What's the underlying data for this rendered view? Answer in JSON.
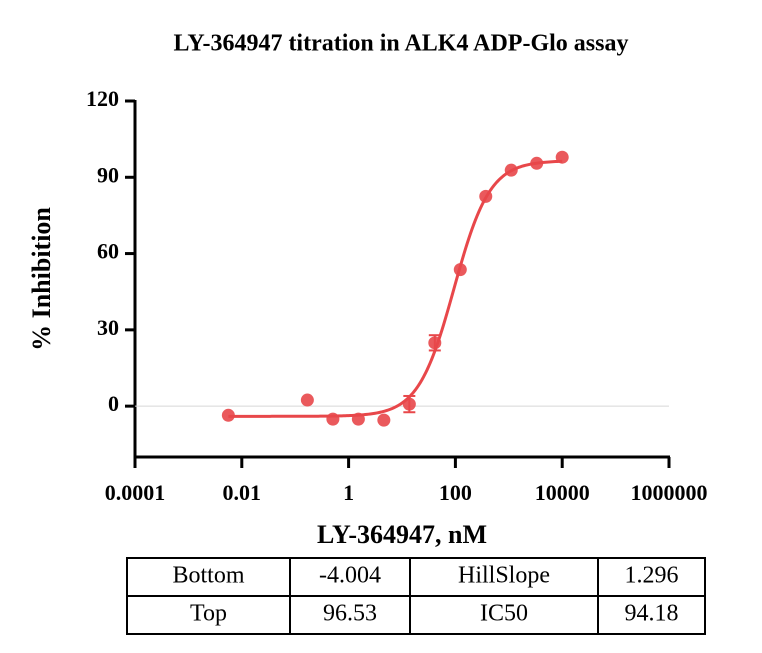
{
  "chart_data": {
    "type": "scatter",
    "title": "LY-364947 titration  in ALK4 ADP-Glo assay",
    "x_label": "LY-364947, nM",
    "y_label": "% Inhibition",
    "log_x": true,
    "zero_line": true,
    "color": "#e8474a",
    "x": [
      0.0056,
      0.169,
      0.508,
      1.524,
      4.572,
      13.72,
      41.15,
      123.5,
      370.4,
      1111,
      3333,
      10000
    ],
    "values": [
      -3.6,
      2.4,
      -5.1,
      -5.1,
      -5.5,
      0.8,
      24.9,
      53.7,
      82.5,
      92.8,
      95.5,
      97.9
    ],
    "errors": [
      null,
      null,
      null,
      null,
      null,
      3.2,
      3.0,
      null,
      null,
      null,
      null,
      null
    ],
    "xlim": [
      0.0001,
      1000000
    ],
    "xticks": [
      0.0001,
      0.01,
      1,
      100,
      10000,
      1000000
    ],
    "ylim": [
      -20,
      120
    ],
    "yticks": [
      0,
      30,
      60,
      90,
      120
    ]
  },
  "table": {
    "rows": [
      [
        "Bottom",
        -4.004,
        "HillSlope",
        1.296
      ],
      [
        "Top",
        96.53,
        "IC50",
        94.18
      ]
    ]
  }
}
